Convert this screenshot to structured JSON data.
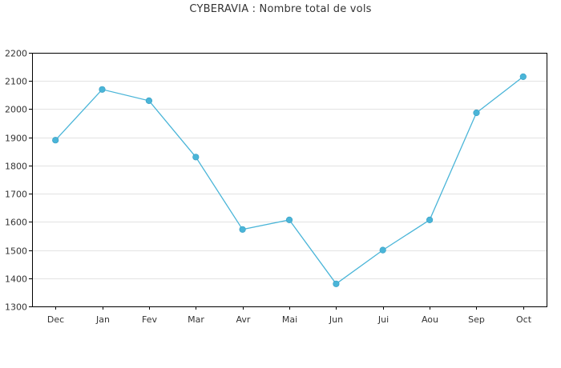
{
  "chart_data": {
    "type": "line",
    "title": "CYBERAVIA : Nombre total de vols",
    "categories": [
      "Dec",
      "Jan",
      "Fev",
      "Mar",
      "Avr",
      "Mai",
      "Jun",
      "Jui",
      "Aou",
      "Sep",
      "Oct"
    ],
    "series": [
      {
        "values": [
          1890,
          2070,
          2030,
          1830,
          1573,
          1607,
          1380,
          1500,
          1607,
          1987,
          2115
        ],
        "color": "#4ab5d8"
      }
    ],
    "ylim": [
      1300,
      2200
    ],
    "yticks": [
      1300,
      1400,
      1500,
      1600,
      1700,
      1800,
      1900,
      2000,
      2100,
      2200
    ],
    "grid": true,
    "legend": "none",
    "xlabel": "",
    "ylabel": ""
  }
}
